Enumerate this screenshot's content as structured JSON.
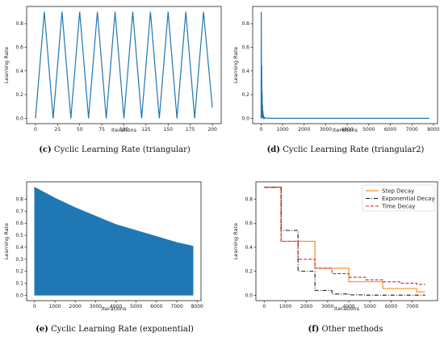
{
  "chart_data": [
    {
      "panel": "c",
      "caption_label": "(c)",
      "caption": "Cyclic Learning Rate (triangular)",
      "type": "line",
      "xlabel": "Iterations",
      "ylabel": "Learning Rate",
      "xlim": [
        -10,
        210
      ],
      "ylim": [
        -0.045,
        0.945
      ],
      "xticks": [
        0,
        25,
        50,
        75,
        100,
        125,
        150,
        175,
        200
      ],
      "yticks": [
        0.0,
        0.2,
        0.4,
        0.6,
        0.8
      ],
      "yticklabels": [
        "0.0",
        "0.2",
        "0.4",
        "0.6",
        "0.8"
      ],
      "color": "#1f77b4",
      "series": [
        {
          "x": [
            0,
            10,
            20,
            30,
            40,
            50,
            60,
            70,
            80,
            90,
            100,
            110,
            120,
            130,
            140,
            150,
            160,
            170,
            180,
            190,
            200
          ],
          "y": [
            0.0,
            0.9,
            0.0,
            0.9,
            0.0,
            0.9,
            0.0,
            0.9,
            0.0,
            0.9,
            0.0,
            0.9,
            0.0,
            0.9,
            0.0,
            0.9,
            0.0,
            0.9,
            0.0,
            0.9,
            0.09
          ]
        }
      ]
    },
    {
      "panel": "d",
      "caption_label": "(d)",
      "caption": "Cyclic Learning Rate (triangular2)",
      "type": "line",
      "xlabel": "Iterations",
      "ylabel": "Learning Rate",
      "xlim": [
        -390,
        8190
      ],
      "ylim": [
        -0.045,
        0.945
      ],
      "xticks": [
        0,
        1000,
        2000,
        3000,
        4000,
        5000,
        6000,
        7000,
        8000
      ],
      "yticks": [
        0.0,
        0.2,
        0.4,
        0.6,
        0.8
      ],
      "yticklabels": [
        "0.0",
        "0.2",
        "0.4",
        "0.6",
        "0.8"
      ],
      "color": "#1f77b4",
      "series": [
        {
          "x": [
            0,
            10,
            20,
            30,
            40,
            50,
            60,
            70,
            80,
            90,
            100,
            110,
            120,
            130,
            140,
            160,
            200,
            400,
            1000,
            4000,
            7800
          ],
          "y": [
            0.0,
            0.9,
            0.0,
            0.45,
            0.0,
            0.225,
            0.0,
            0.11,
            0.0,
            0.06,
            0.0,
            0.03,
            0.0,
            0.015,
            0.0,
            0.008,
            0.002,
            0.0,
            0.0,
            0.0,
            0.0
          ]
        }
      ]
    },
    {
      "panel": "e",
      "caption_label": "(e)",
      "caption": "Cyclic Learning Rate (exponential)",
      "type": "area",
      "xlabel": "Iterations",
      "ylabel": "Learning Rate",
      "xlim": [
        -390,
        8190
      ],
      "ylim": [
        -0.045,
        0.945
      ],
      "xticks": [
        0,
        1000,
        2000,
        3000,
        4000,
        5000,
        6000,
        7000,
        8000
      ],
      "yticks": [
        0.0,
        0.1,
        0.2,
        0.3,
        0.4,
        0.5,
        0.6,
        0.7,
        0.8
      ],
      "yticklabels": [
        "0.0",
        "0.1",
        "0.2",
        "0.3",
        "0.4",
        "0.5",
        "0.6",
        "0.7",
        "0.8"
      ],
      "color": "#1f77b4",
      "series": [
        {
          "upper_x": [
            0,
            1000,
            2000,
            3000,
            4000,
            5000,
            6000,
            7000,
            7800
          ],
          "upper_y": [
            0.9,
            0.81,
            0.73,
            0.66,
            0.59,
            0.54,
            0.49,
            0.44,
            0.41
          ],
          "lower": 0.0
        }
      ]
    },
    {
      "panel": "f",
      "caption_label": "(f)",
      "caption": "Other methods",
      "type": "line",
      "xlabel": "Iterations",
      "ylabel": "Learning Rate",
      "xlim": [
        -390,
        8190
      ],
      "ylim": [
        -0.045,
        0.945
      ],
      "xticks": [
        0,
        1000,
        2000,
        3000,
        4000,
        5000,
        6000,
        7000
      ],
      "yticks": [
        0.0,
        0.2,
        0.4,
        0.6,
        0.8
      ],
      "yticklabels": [
        "0.0",
        "0.2",
        "0.4",
        "0.6",
        "0.8"
      ],
      "legend_position": "top-right",
      "series": [
        {
          "name": "Step Decay",
          "color": "#ff7f0e",
          "dash": "solid",
          "x": [
            0,
            800,
            800,
            2400,
            2400,
            4000,
            4000,
            5600,
            5600,
            7200,
            7200,
            7600
          ],
          "y": [
            0.9,
            0.9,
            0.45,
            0.45,
            0.225,
            0.225,
            0.1125,
            0.1125,
            0.056,
            0.056,
            0.028,
            0.028
          ]
        },
        {
          "name": "Exponential Decay",
          "color": "#111111",
          "dash": "dashdot",
          "x": [
            0,
            800,
            800,
            1600,
            1600,
            2400,
            2400,
            3200,
            3200,
            4000,
            4000,
            4800,
            4800,
            7600
          ],
          "y": [
            0.9,
            0.9,
            0.54,
            0.54,
            0.2,
            0.2,
            0.04,
            0.04,
            0.01,
            0.01,
            0.003,
            0.003,
            0.001,
            0.001
          ]
        },
        {
          "name": "Time Decay",
          "color": "#d62728",
          "dash": "dashed",
          "x": [
            0,
            800,
            800,
            1600,
            1600,
            2400,
            2400,
            3200,
            3200,
            4000,
            4000,
            4800,
            4800,
            5600,
            5600,
            6400,
            6400,
            7200,
            7200,
            7600
          ],
          "y": [
            0.9,
            0.9,
            0.45,
            0.45,
            0.3,
            0.3,
            0.225,
            0.225,
            0.18,
            0.18,
            0.15,
            0.15,
            0.128,
            0.128,
            0.112,
            0.112,
            0.1,
            0.1,
            0.09,
            0.09
          ]
        }
      ]
    }
  ]
}
